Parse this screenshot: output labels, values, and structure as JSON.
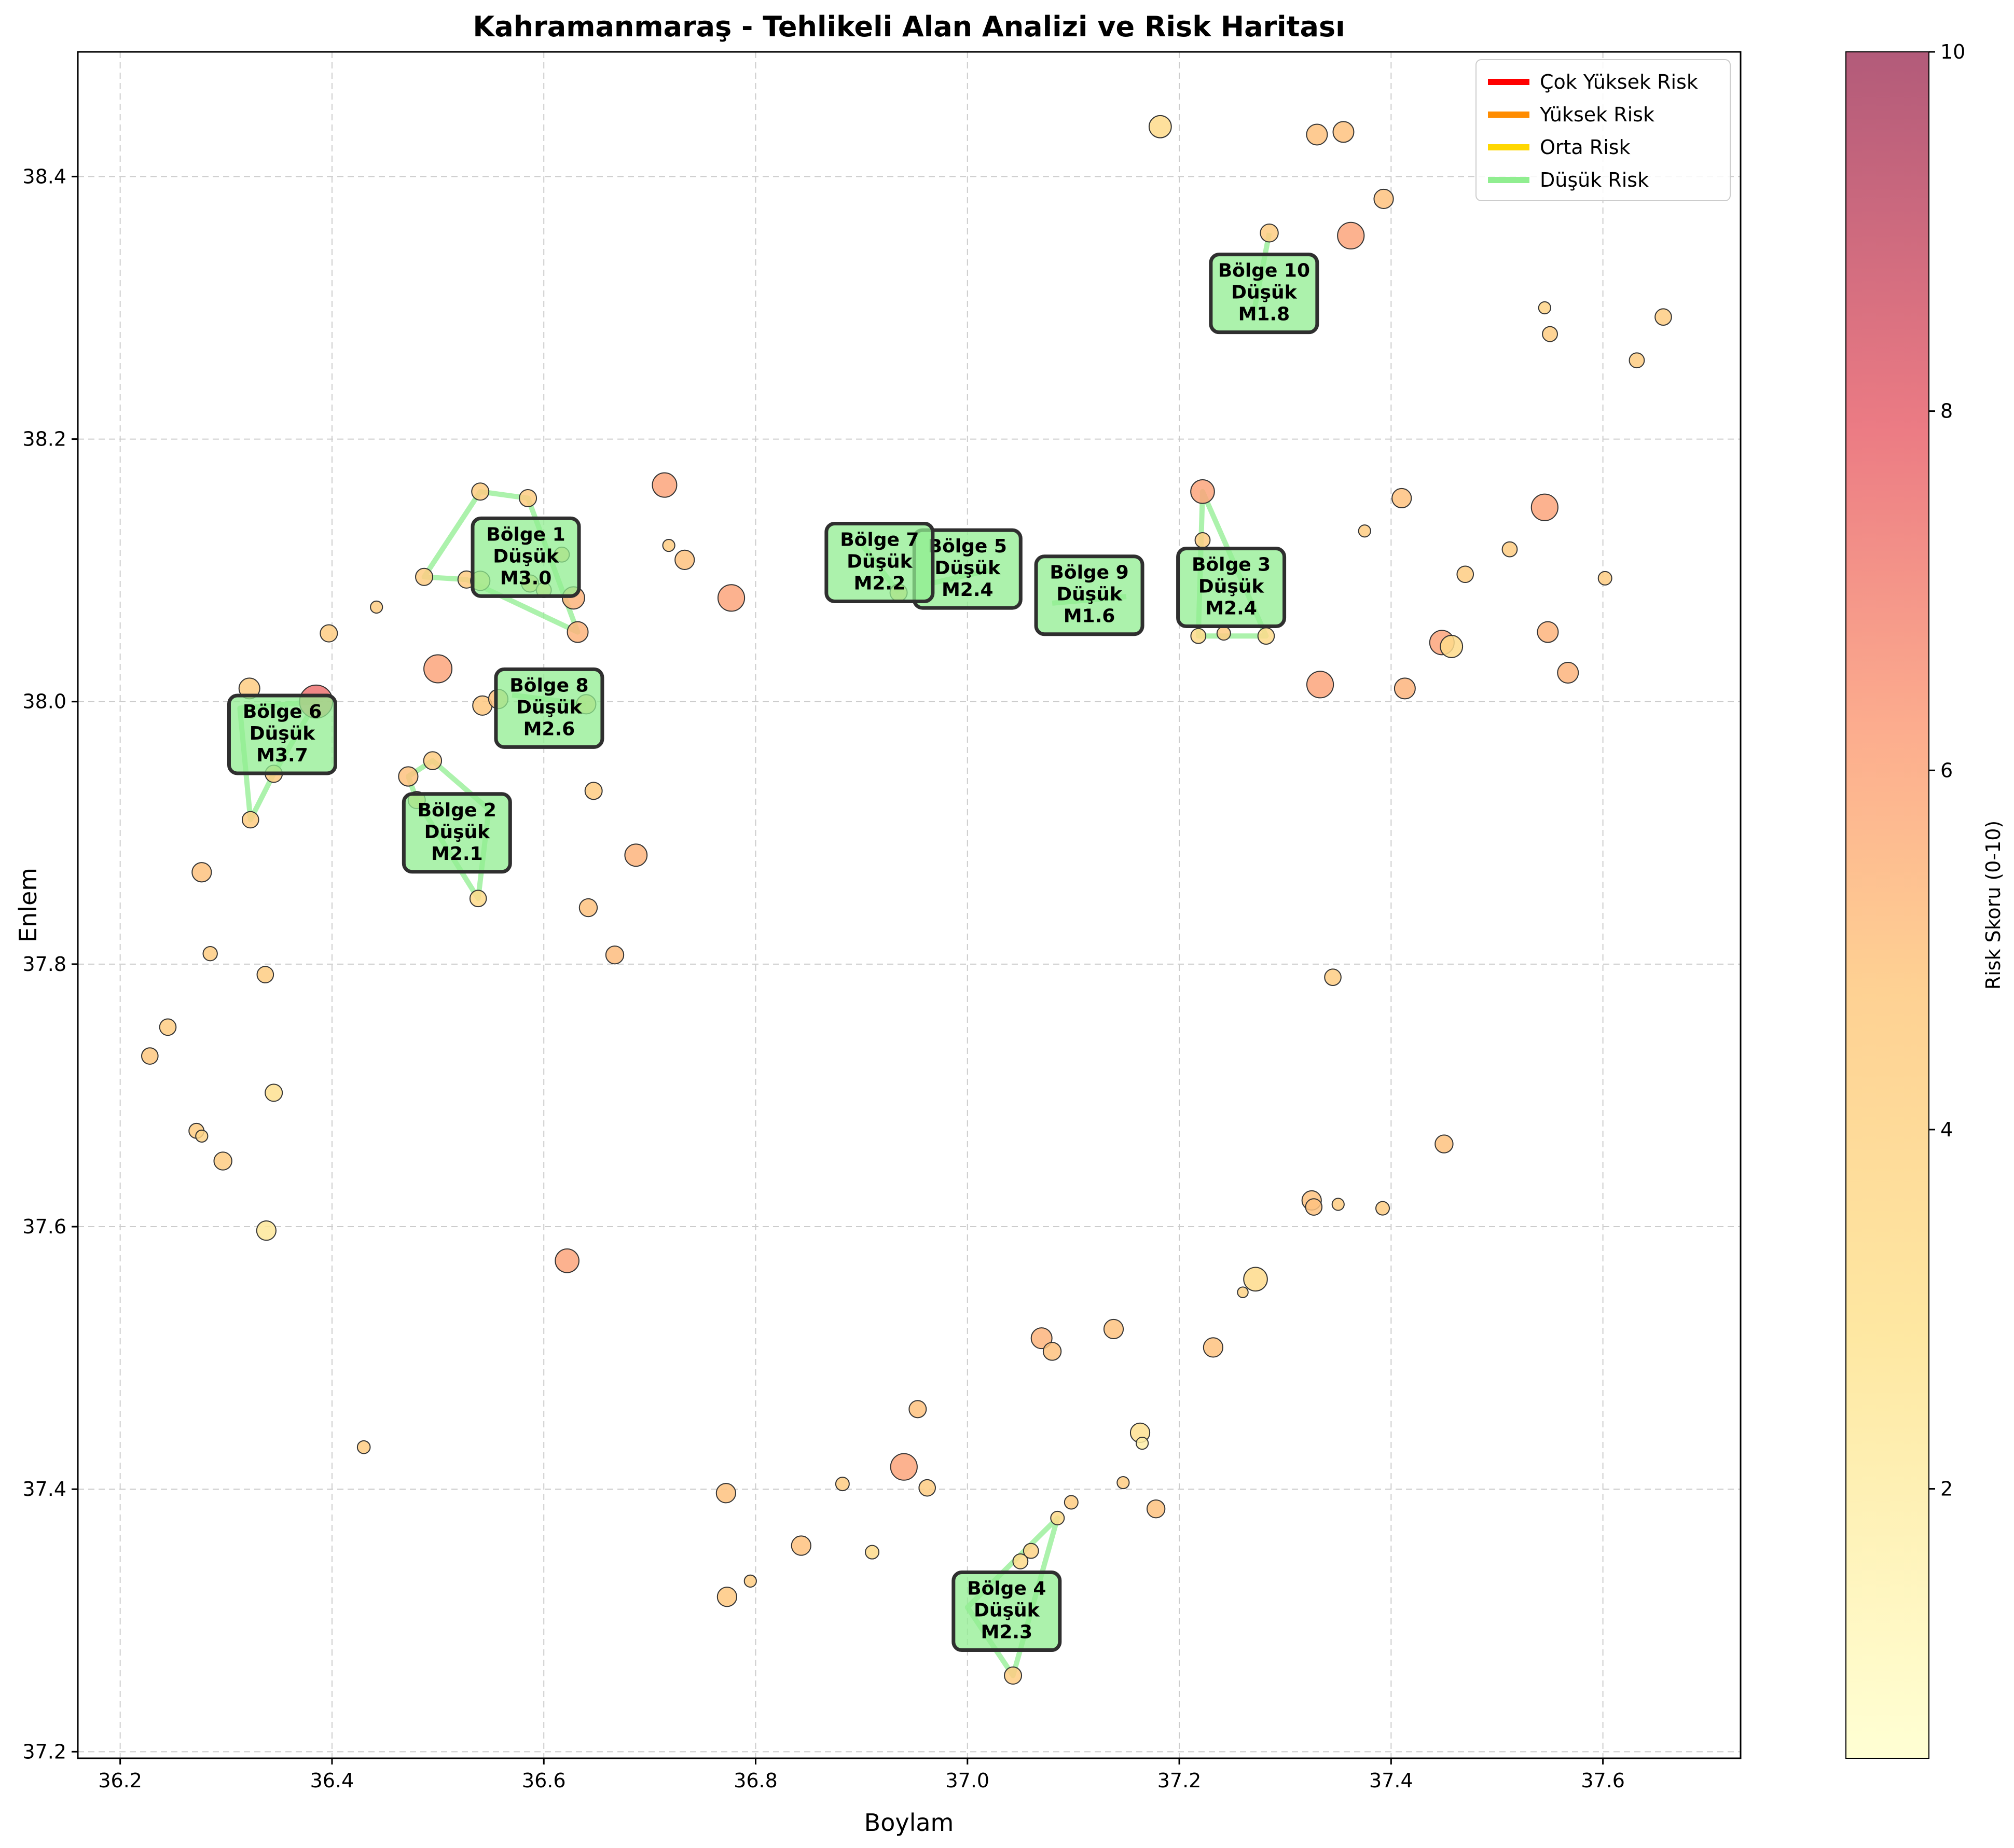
{
  "chart_data": {
    "type": "scatter",
    "title": "Kahramanmaraş - Tehlikeli Alan Analizi ve Risk Haritası",
    "xlabel": "Boylam",
    "ylabel": "Enlem",
    "xlim": [
      36.16,
      37.73
    ],
    "ylim": [
      37.195,
      38.495
    ],
    "x_ticks": [
      "36.2",
      "36.4",
      "36.6",
      "36.8",
      "37.0",
      "37.2",
      "37.4",
      "37.6"
    ],
    "y_ticks": [
      "37.2",
      "37.4",
      "37.6",
      "37.8",
      "38.0",
      "38.2",
      "38.4"
    ],
    "grid": true,
    "legend_position": "top-right",
    "legend": [
      {
        "label": "Çok Yüksek Risk",
        "color": "#ff0000"
      },
      {
        "label": "Yüksek Risk",
        "color": "#ff8c00"
      },
      {
        "label": "Orta Risk",
        "color": "#ffd700"
      },
      {
        "label": "Düşük Risk",
        "color": "#90ee90"
      }
    ],
    "colorbar": {
      "label": "Risk Skoru (0-10)",
      "range": [
        0.5,
        10
      ],
      "ticks": [
        "2",
        "4",
        "6",
        "8",
        "10"
      ]
    },
    "points": [
      {
        "x": 36.385,
        "y": 38.0,
        "risk": 7.5,
        "mag": 3.7
      },
      {
        "x": 36.5,
        "y": 38.025,
        "risk": 6.0,
        "mag": 3.0
      },
      {
        "x": 36.322,
        "y": 38.01,
        "risk": 4.5,
        "mag": 2.0
      },
      {
        "x": 36.397,
        "y": 38.052,
        "risk": 4.5,
        "mag": 1.5
      },
      {
        "x": 36.442,
        "y": 38.072,
        "risk": 4.5,
        "mag": 0.8
      },
      {
        "x": 36.542,
        "y": 37.997,
        "risk": 4.8,
        "mag": 1.8
      },
      {
        "x": 36.557,
        "y": 38.002,
        "risk": 5.0,
        "mag": 1.8
      },
      {
        "x": 36.647,
        "y": 37.932,
        "risk": 4.5,
        "mag": 1.5
      },
      {
        "x": 36.687,
        "y": 37.883,
        "risk": 5.5,
        "mag": 2.2
      },
      {
        "x": 36.642,
        "y": 37.843,
        "risk": 5.0,
        "mag": 1.6
      },
      {
        "x": 36.667,
        "y": 37.807,
        "risk": 5.2,
        "mag": 1.6
      },
      {
        "x": 36.277,
        "y": 37.87,
        "risk": 5.0,
        "mag": 1.8
      },
      {
        "x": 36.285,
        "y": 37.808,
        "risk": 4.5,
        "mag": 1.1
      },
      {
        "x": 36.337,
        "y": 37.792,
        "risk": 4.5,
        "mag": 1.4
      },
      {
        "x": 36.245,
        "y": 37.752,
        "risk": 4.5,
        "mag": 1.4
      },
      {
        "x": 36.228,
        "y": 37.73,
        "risk": 4.8,
        "mag": 1.4
      },
      {
        "x": 36.345,
        "y": 37.702,
        "risk": 3.0,
        "mag": 1.5
      },
      {
        "x": 36.272,
        "y": 37.673,
        "risk": 4.5,
        "mag": 1.2
      },
      {
        "x": 36.277,
        "y": 37.669,
        "risk": 4.0,
        "mag": 0.8
      },
      {
        "x": 36.297,
        "y": 37.65,
        "risk": 4.5,
        "mag": 1.6
      },
      {
        "x": 36.338,
        "y": 37.597,
        "risk": 2.5,
        "mag": 1.8
      },
      {
        "x": 36.622,
        "y": 37.574,
        "risk": 6.0,
        "mag": 2.4
      },
      {
        "x": 36.43,
        "y": 37.432,
        "risk": 4.5,
        "mag": 0.9
      },
      {
        "x": 36.714,
        "y": 38.165,
        "risk": 6.0,
        "mag": 2.5
      },
      {
        "x": 36.718,
        "y": 38.119,
        "risk": 4.5,
        "mag": 0.8
      },
      {
        "x": 36.733,
        "y": 38.108,
        "risk": 5.0,
        "mag": 1.8
      },
      {
        "x": 36.777,
        "y": 38.079,
        "risk": 6.0,
        "mag": 2.8
      },
      {
        "x": 36.628,
        "y": 38.079,
        "risk": 5.5,
        "mag": 2.2
      },
      {
        "x": 36.632,
        "y": 38.053,
        "risk": 5.5,
        "mag": 2.0
      },
      {
        "x": 36.617,
        "y": 38.112,
        "risk": 4.5,
        "mag": 1.2
      },
      {
        "x": 36.772,
        "y": 37.397,
        "risk": 5.0,
        "mag": 1.8
      },
      {
        "x": 36.773,
        "y": 37.318,
        "risk": 4.8,
        "mag": 1.8
      },
      {
        "x": 36.795,
        "y": 37.33,
        "risk": 4.5,
        "mag": 0.8
      },
      {
        "x": 36.843,
        "y": 37.357,
        "risk": 5.0,
        "mag": 1.8
      },
      {
        "x": 36.882,
        "y": 37.404,
        "risk": 4.5,
        "mag": 1.0
      },
      {
        "x": 36.91,
        "y": 37.352,
        "risk": 3.5,
        "mag": 1.0
      },
      {
        "x": 36.94,
        "y": 37.417,
        "risk": 6.0,
        "mag": 2.8
      },
      {
        "x": 36.953,
        "y": 37.461,
        "risk": 5.0,
        "mag": 1.5
      },
      {
        "x": 36.962,
        "y": 37.401,
        "risk": 4.5,
        "mag": 1.4
      },
      {
        "x": 37.07,
        "y": 37.515,
        "risk": 5.5,
        "mag": 2.0
      },
      {
        "x": 37.08,
        "y": 37.505,
        "risk": 5.0,
        "mag": 1.6
      },
      {
        "x": 37.138,
        "y": 37.522,
        "risk": 5.0,
        "mag": 1.8
      },
      {
        "x": 37.098,
        "y": 37.39,
        "risk": 4.5,
        "mag": 1.0
      },
      {
        "x": 37.147,
        "y": 37.405,
        "risk": 4.5,
        "mag": 0.8
      },
      {
        "x": 37.163,
        "y": 37.443,
        "risk": 3.0,
        "mag": 1.8
      },
      {
        "x": 37.165,
        "y": 37.435,
        "risk": 2.0,
        "mag": 0.8
      },
      {
        "x": 37.178,
        "y": 37.385,
        "risk": 5.0,
        "mag": 1.6
      },
      {
        "x": 37.06,
        "y": 37.353,
        "risk": 4.0,
        "mag": 1.2
      },
      {
        "x": 37.232,
        "y": 37.508,
        "risk": 5.0,
        "mag": 1.8
      },
      {
        "x": 37.26,
        "y": 37.55,
        "risk": 4.0,
        "mag": 0.6
      },
      {
        "x": 37.272,
        "y": 37.56,
        "risk": 3.5,
        "mag": 2.4
      },
      {
        "x": 37.325,
        "y": 37.62,
        "risk": 5.0,
        "mag": 1.8
      },
      {
        "x": 37.327,
        "y": 37.615,
        "risk": 5.0,
        "mag": 1.4
      },
      {
        "x": 37.35,
        "y": 37.617,
        "risk": 4.5,
        "mag": 0.8
      },
      {
        "x": 37.392,
        "y": 37.614,
        "risk": 4.5,
        "mag": 1.0
      },
      {
        "x": 37.45,
        "y": 37.663,
        "risk": 5.0,
        "mag": 1.6
      },
      {
        "x": 37.345,
        "y": 37.79,
        "risk": 4.5,
        "mag": 1.4
      },
      {
        "x": 37.333,
        "y": 38.013,
        "risk": 6.0,
        "mag": 2.8
      },
      {
        "x": 37.413,
        "y": 38.01,
        "risk": 5.5,
        "mag": 2.0
      },
      {
        "x": 37.448,
        "y": 38.045,
        "risk": 6.0,
        "mag": 2.5
      },
      {
        "x": 37.457,
        "y": 38.042,
        "risk": 3.5,
        "mag": 2.2
      },
      {
        "x": 37.47,
        "y": 38.097,
        "risk": 4.5,
        "mag": 1.4
      },
      {
        "x": 37.512,
        "y": 38.116,
        "risk": 4.5,
        "mag": 1.2
      },
      {
        "x": 37.548,
        "y": 38.053,
        "risk": 5.5,
        "mag": 2.0
      },
      {
        "x": 37.567,
        "y": 38.022,
        "risk": 5.5,
        "mag": 2.0
      },
      {
        "x": 37.602,
        "y": 38.094,
        "risk": 4.5,
        "mag": 1.0
      },
      {
        "x": 37.545,
        "y": 38.148,
        "risk": 6.0,
        "mag": 2.8
      },
      {
        "x": 37.41,
        "y": 38.155,
        "risk": 5.0,
        "mag": 1.8
      },
      {
        "x": 37.375,
        "y": 38.13,
        "risk": 4.5,
        "mag": 0.8
      },
      {
        "x": 37.545,
        "y": 38.3,
        "risk": 4.0,
        "mag": 0.8
      },
      {
        "x": 37.55,
        "y": 38.28,
        "risk": 4.5,
        "mag": 1.2
      },
      {
        "x": 37.632,
        "y": 38.26,
        "risk": 4.5,
        "mag": 1.2
      },
      {
        "x": 37.657,
        "y": 38.293,
        "risk": 4.5,
        "mag": 1.4
      },
      {
        "x": 37.393,
        "y": 38.383,
        "risk": 5.0,
        "mag": 1.8
      },
      {
        "x": 37.362,
        "y": 38.355,
        "risk": 6.0,
        "mag": 2.8
      },
      {
        "x": 37.33,
        "y": 38.432,
        "risk": 5.0,
        "mag": 2.0
      },
      {
        "x": 37.355,
        "y": 38.434,
        "risk": 5.0,
        "mag": 2.0
      },
      {
        "x": 37.182,
        "y": 38.438,
        "risk": 3.5,
        "mag": 2.2
      },
      {
        "x": 37.285,
        "y": 38.357,
        "risk": 4.5,
        "mag": 1.6
      },
      {
        "x": 37.222,
        "y": 38.16,
        "risk": 6.0,
        "mag": 2.4
      },
      {
        "x": 37.222,
        "y": 38.123,
        "risk": 4.5,
        "mag": 1.2
      },
      {
        "x": 37.242,
        "y": 38.052,
        "risk": 4.5,
        "mag": 1.0
      },
      {
        "x": 37.218,
        "y": 38.05,
        "risk": 3.5,
        "mag": 1.2
      },
      {
        "x": 37.282,
        "y": 38.05,
        "risk": 3.5,
        "mag": 1.4
      },
      {
        "x": 36.487,
        "y": 38.095,
        "risk": 4.5,
        "mag": 1.5
      },
      {
        "x": 36.54,
        "y": 38.16,
        "risk": 4.5,
        "mag": 1.5
      },
      {
        "x": 36.585,
        "y": 38.155,
        "risk": 4.5,
        "mag": 1.5
      },
      {
        "x": 36.527,
        "y": 38.093,
        "risk": 4.5,
        "mag": 1.5
      },
      {
        "x": 36.54,
        "y": 38.092,
        "risk": 3.5,
        "mag": 1.8
      },
      {
        "x": 36.587,
        "y": 38.09,
        "risk": 4.5,
        "mag": 1.5
      },
      {
        "x": 36.6,
        "y": 38.085,
        "risk": 4.5,
        "mag": 1.2
      },
      {
        "x": 36.472,
        "y": 37.943,
        "risk": 5.0,
        "mag": 1.8
      },
      {
        "x": 36.495,
        "y": 37.955,
        "risk": 4.5,
        "mag": 1.6
      },
      {
        "x": 36.48,
        "y": 37.925,
        "risk": 4.5,
        "mag": 1.5
      },
      {
        "x": 36.538,
        "y": 37.85,
        "risk": 3.5,
        "mag": 1.4
      },
      {
        "x": 36.323,
        "y": 37.91,
        "risk": 4.5,
        "mag": 1.4
      },
      {
        "x": 36.345,
        "y": 37.945,
        "risk": 4.5,
        "mag": 1.5
      },
      {
        "x": 36.64,
        "y": 37.998,
        "risk": 4.5,
        "mag": 1.8
      },
      {
        "x": 36.935,
        "y": 38.083,
        "risk": 4.5,
        "mag": 1.5
      },
      {
        "x": 37.043,
        "y": 37.258,
        "risk": 4.5,
        "mag": 1.5
      },
      {
        "x": 37.085,
        "y": 37.378,
        "risk": 3.5,
        "mag": 1.0
      },
      {
        "x": 37.05,
        "y": 37.345,
        "risk": 3.5,
        "mag": 1.2
      }
    ],
    "zones": [
      {
        "name": "Bölge 1",
        "risk": "Düşük",
        "magnitude": "M3.0",
        "label_x": 36.583,
        "label_y": 38.11,
        "polygon": [
          [
            36.487,
            38.095
          ],
          [
            36.54,
            38.16
          ],
          [
            36.585,
            38.155
          ],
          [
            36.632,
            38.053
          ],
          [
            36.527,
            38.093
          ]
        ]
      },
      {
        "name": "Bölge 2",
        "risk": "Düşük",
        "magnitude": "M2.1",
        "label_x": 36.518,
        "label_y": 37.9,
        "polygon": [
          [
            36.472,
            37.943
          ],
          [
            36.495,
            37.955
          ],
          [
            36.548,
            37.918
          ],
          [
            36.538,
            37.85
          ],
          [
            36.48,
            37.925
          ]
        ]
      },
      {
        "name": "Bölge 3",
        "risk": "Düşük",
        "magnitude": "M2.4",
        "label_x": 37.249,
        "label_y": 38.087,
        "polygon": [
          [
            37.222,
            38.16
          ],
          [
            37.282,
            38.05
          ],
          [
            37.218,
            38.05
          ]
        ]
      },
      {
        "name": "Bölge 4",
        "risk": "Düşük",
        "magnitude": "M2.3",
        "label_x": 37.037,
        "label_y": 37.307,
        "polygon": [
          [
            37.0,
            37.31
          ],
          [
            37.085,
            37.378
          ],
          [
            37.043,
            37.258
          ]
        ]
      },
      {
        "name": "Bölge 5",
        "risk": "Düşük",
        "magnitude": "M2.4",
        "label_x": 37.0,
        "label_y": 38.101,
        "polygon": [
          [
            36.965,
            38.09
          ],
          [
            37.02,
            38.1
          ]
        ]
      },
      {
        "name": "Bölge 6",
        "risk": "Düşük",
        "magnitude": "M3.7",
        "label_x": 36.353,
        "label_y": 37.975,
        "polygon": [
          [
            36.323,
            37.91
          ],
          [
            36.313,
            37.995
          ],
          [
            36.385,
            38.0
          ],
          [
            36.345,
            37.945
          ]
        ]
      },
      {
        "name": "Bölge 7",
        "risk": "Düşük",
        "magnitude": "M2.2",
        "label_x": 36.917,
        "label_y": 38.106,
        "polygon": [
          [
            36.9,
            38.12
          ],
          [
            36.935,
            38.083
          ]
        ]
      },
      {
        "name": "Bölge 8",
        "risk": "Düşük",
        "magnitude": "M2.6",
        "label_x": 36.605,
        "label_y": 37.995,
        "polygon": [
          [
            36.57,
            38.005
          ],
          [
            36.64,
            37.998
          ]
        ]
      },
      {
        "name": "Bölge 9",
        "risk": "Düşük",
        "magnitude": "M1.6",
        "label_x": 37.115,
        "label_y": 38.081,
        "polygon": [
          [
            37.08,
            38.075
          ],
          [
            37.15,
            38.08
          ]
        ]
      },
      {
        "name": "Bölge 10",
        "risk": "Düşük",
        "magnitude": "M1.8",
        "label_x": 37.28,
        "label_y": 38.311,
        "polygon": [
          [
            37.285,
            38.357
          ],
          [
            37.27,
            38.295
          ]
        ]
      }
    ]
  }
}
